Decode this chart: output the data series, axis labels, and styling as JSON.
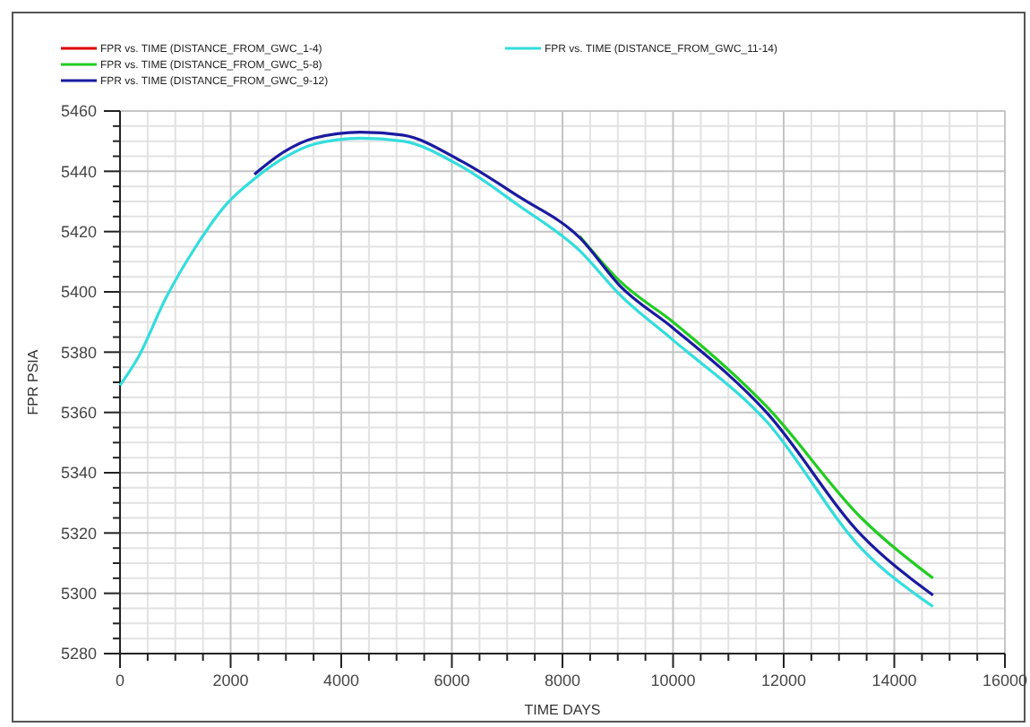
{
  "chart_data": {
    "type": "line",
    "xlabel": "TIME  DAYS",
    "ylabel": "FPR  PSIA",
    "x": [
      0,
      320,
      830,
      1370,
      1920,
      2430,
      2970,
      3510,
      4345,
      5110,
      6170,
      7220,
      8310,
      9040,
      10000,
      11690,
      13420,
      14700
    ],
    "series": [
      {
        "name": "FPR vs. TIME (DISTANCE_FROM_GWC_1-4)",
        "color": "#e00000",
        "values": [
          null,
          null,
          null,
          null,
          null,
          null,
          null,
          null,
          null,
          null,
          null,
          null,
          null,
          null,
          null,
          null,
          null,
          null
        ]
      },
      {
        "name": "FPR vs. TIME (DISTANCE_FROM_GWC_5-8)",
        "color": "#22cc22",
        "values": [
          null,
          null,
          null,
          null,
          null,
          null,
          null,
          null,
          null,
          null,
          null,
          null,
          5418.5,
          5403.5,
          5390,
          5362,
          5324.7,
          5305
        ]
      },
      {
        "name": "FPR vs. TIME (DISTANCE_FROM_GWC_9-12)",
        "color": "#1a1aa0",
        "values": [
          null,
          null,
          null,
          null,
          null,
          5439,
          5446.5,
          5451,
          5453,
          5452,
          5443.4,
          5431.5,
          5418,
          5402,
          5388,
          5360,
          5319,
          5299.4
        ]
      },
      {
        "name": "FPR vs. TIME (DISTANCE_FROM_GWC_11-14)",
        "color": "#33dddd",
        "values": [
          5369,
          5378,
          5398,
          5415,
          5429,
          5437.5,
          5444.5,
          5449,
          5451,
          5450,
          5441.6,
          5428.5,
          5413.7,
          5399,
          5384,
          5357,
          5314.6,
          5295.6
        ]
      }
    ],
    "xlim": [
      0,
      16000
    ],
    "xticks": [
      0,
      2000,
      4000,
      6000,
      8000,
      10000,
      12000,
      14000,
      16000
    ],
    "ylim": [
      5280,
      5460
    ],
    "yticks": [
      5280,
      5300,
      5320,
      5340,
      5360,
      5380,
      5400,
      5420,
      5440,
      5460
    ],
    "grid": true,
    "legend": "top",
    "line_style": "solid",
    "marker": "none"
  }
}
